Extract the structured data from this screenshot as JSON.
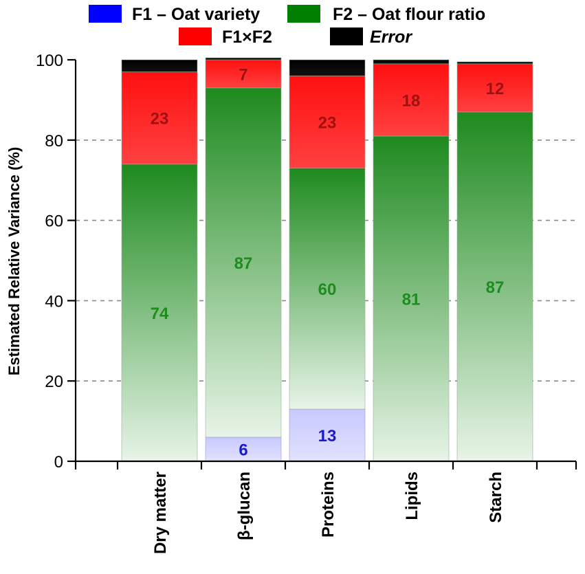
{
  "chart_data": {
    "type": "bar",
    "stacked": true,
    "categories": [
      "Dry matter",
      "β-glucan",
      "Proteins",
      "Lipids",
      "Starch"
    ],
    "series": [
      {
        "name": "F1 – Oat variety",
        "color": "#0000ff",
        "values": [
          0,
          6,
          13,
          0,
          0
        ],
        "labels": [
          "",
          "6",
          "13",
          "",
          ""
        ],
        "label_color": "#1a1acc"
      },
      {
        "name": "F2 – Oat flour ratio",
        "color": "#008000",
        "values": [
          74,
          87,
          60,
          81,
          87
        ],
        "labels": [
          "74",
          "87",
          "60",
          "81",
          "87"
        ],
        "label_color": "#1e8c1e"
      },
      {
        "name": "F1×F2",
        "color": "#ff0000",
        "values": [
          23,
          7,
          23,
          18,
          12
        ],
        "labels": [
          "23",
          "7",
          "23",
          "18",
          "12"
        ],
        "label_color": "#a01010"
      },
      {
        "name": "Error",
        "color": "#000000",
        "values": [
          3,
          0.5,
          4,
          1,
          0.5
        ],
        "labels": [
          "",
          "",
          "",
          "",
          ""
        ]
      }
    ],
    "ylabel": "Estimated Relative Variance (%)",
    "ylim": [
      0,
      100
    ],
    "yticks": [
      0,
      20,
      40,
      60,
      80,
      100
    ],
    "grid": "dashed horizontal at 20, 40, 60, 80",
    "legend_position": "top"
  }
}
